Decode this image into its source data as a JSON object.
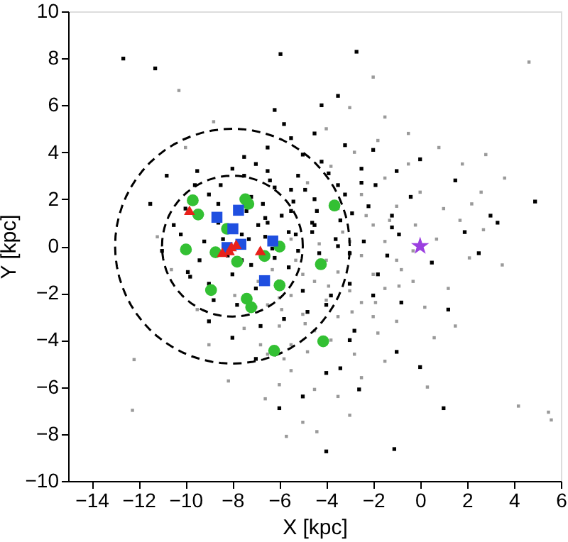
{
  "chart_data": {
    "type": "scatter",
    "xlabel": "X [kpc]",
    "ylabel": "Y [kpc]",
    "xlim": [
      -15,
      6
    ],
    "ylim": [
      -10,
      10
    ],
    "xticks": [
      -14,
      -12,
      -10,
      -8,
      -6,
      -4,
      -2,
      0,
      2,
      4,
      6
    ],
    "yticks": [
      -10,
      -8,
      -6,
      -4,
      -2,
      0,
      2,
      4,
      6,
      8,
      10
    ],
    "grid": false,
    "series": [
      {
        "type": "scatter",
        "marker": "square",
        "color": "#9a9a9a",
        "x": [
          -10.28,
          4.64,
          -12.26,
          -12.19,
          -8.17,
          4.19,
          5.47,
          5.59,
          0.31,
          -2.0,
          -1.5,
          -0.5,
          0.8,
          1.8,
          2.8,
          3.6,
          2.6,
          1.0,
          -0.2,
          2.1,
          3.5,
          1.2,
          -0.3,
          -1.0,
          -2.0,
          -1.5,
          -2.5,
          -3.5,
          -4.5,
          -5.0,
          -4.4,
          -3.0,
          -5.5,
          -6.0,
          -6.5,
          -5.5,
          -4.5,
          -3.5,
          -2.5,
          -1.5,
          -6.0,
          -5.0,
          -4.0,
          -3.0,
          -2.0,
          -1.0,
          -6.5,
          -5.5,
          -4.5,
          -3.5,
          -2.5,
          -1.5,
          -7.0,
          -6.0,
          -5.0,
          -4.0,
          -3.0,
          -2.0,
          -1.0,
          0.0,
          -5.5,
          -4.5,
          -3.5,
          -2.5,
          -1.5,
          -0.5,
          -4.8,
          -3.8,
          -2.8,
          -1.8,
          -6.3,
          -5.3,
          -4.3,
          -3.3,
          -2.3,
          -1.3,
          -0.3,
          0.7,
          1.7,
          2.7,
          -7.5,
          -6.8,
          -5.8,
          -4.8,
          -3.8,
          -2.8,
          -1.8,
          -0.8,
          0.2,
          1.5,
          -9.5,
          -10.6,
          -11.2,
          -10.0,
          -8.8,
          -3.0,
          -4.0,
          -9.0,
          -7.9,
          -6.9,
          -5.9,
          -4.9,
          -3.9,
          -2.9,
          -1.9,
          -0.9,
          0.6,
          2.2,
          -6.6,
          -5.7
        ],
        "values": [
          6.63,
          7.84,
          -6.99,
          -4.83,
          -5.74,
          -6.81,
          -7.07,
          -7.4,
          -6.0,
          7.2,
          5.5,
          4.8,
          4.2,
          3.5,
          3.9,
          2.9,
          2.3,
          1.6,
          0.9,
          -0.5,
          -0.8,
          -1.8,
          -1.5,
          -3.2,
          -3.0,
          -4.9,
          -5.6,
          -6.4,
          -6.1,
          -7.5,
          -7.9,
          -7.2,
          -5.3,
          -5.9,
          -4.6,
          -4.2,
          -3.6,
          -3.0,
          -2.4,
          -1.8,
          -3.4,
          -2.9,
          -2.3,
          -1.9,
          -1.2,
          -0.6,
          -2.5,
          -2.1,
          -1.5,
          -1.1,
          -0.4,
          0.2,
          -2.6,
          -2.2,
          -1.2,
          -0.6,
          0.2,
          0.9,
          1.7,
          2.3,
          0.3,
          0.9,
          1.6,
          2.2,
          2.9,
          3.5,
          2.7,
          3.4,
          4.0,
          4.5,
          -1.0,
          -0.6,
          0.1,
          0.6,
          1.3,
          1.1,
          -0.2,
          0.3,
          1.1,
          0.7,
          -3.5,
          -4.2,
          -4.8,
          -4.5,
          -4.0,
          -4.6,
          -3.7,
          -1.0,
          -2.6,
          -3.4,
          -2.7,
          -1.0,
          0.4,
          4.2,
          5.3,
          5.9,
          5.0,
          -4.2,
          -2.1,
          -1.5,
          -2.7,
          -3.3,
          -1.7,
          -2.8,
          -2.4,
          -1.7,
          -3.9,
          1.8,
          -6.5,
          -8.1
        ]
      },
      {
        "type": "scatter",
        "marker": "square",
        "color": "#000000",
        "x": [
          -12.65,
          -11.29,
          -5.95,
          -2.71,
          -6.2,
          -5.8,
          -4.2,
          -3.5,
          -2.0,
          -1.0,
          0.0,
          1.5,
          3.0,
          4.9,
          3.3,
          1.9,
          -0.4,
          -1.2,
          -2.5,
          -3.2,
          -4.5,
          -5.0,
          -5.5,
          -6.5,
          -7.0,
          -7.5,
          -8.0,
          -8.5,
          -9.0,
          -9.5,
          -10.0,
          -10.5,
          -11.0,
          -9.8,
          -8.8,
          -7.8,
          -6.8,
          -5.8,
          -4.8,
          -3.8,
          -2.8,
          -1.8,
          -0.8,
          0.5,
          1.2,
          2.5,
          -3.0,
          -4.0,
          -5.0,
          -6.0,
          -7.0,
          -8.0,
          -9.0,
          -6.5,
          -5.5,
          -4.5,
          -3.5,
          -2.5,
          -7.2,
          -6.2,
          -5.2,
          -4.2,
          -3.2,
          -2.2,
          -1.2,
          -8.6,
          -7.6,
          -6.6,
          -5.6,
          -4.6,
          -3.6,
          -9.2,
          -8.2,
          -7.2,
          -6.2,
          -5.2,
          -3.0,
          -10.2,
          -9.4,
          -8.4,
          -7.4,
          -6.4,
          -5.4,
          -4.4,
          -3.4,
          -2.4,
          -1.4,
          -9.0,
          -8.0,
          -7.0,
          -6.0,
          -5.0,
          -4.0,
          -3.0,
          -2.0,
          -7.5,
          -6.5,
          -5.5,
          -4.5,
          -3.5,
          -9.6,
          -8.6,
          -7.6,
          -6.6,
          -5.6,
          -4.6,
          -1.0,
          -4.0,
          1.0,
          0.0,
          -1.1,
          -2.6,
          -3.4,
          -10.8,
          -11.5,
          -9.9,
          -6.9,
          -5.9,
          -4.9,
          -3.9,
          -2.9,
          -1.9,
          -0.9,
          -6.3,
          -7.3,
          -5.3,
          -4.3,
          -6.7
        ],
        "values": [
          7.99,
          7.57,
          8.18,
          8.28,
          5.8,
          5.2,
          6.0,
          6.4,
          4.1,
          3.2,
          3.7,
          2.8,
          1.3,
          1.9,
          1.0,
          0.6,
          2.1,
          1.3,
          2.7,
          4.3,
          4.8,
          3.9,
          4.6,
          4.2,
          3.5,
          3.0,
          3.3,
          2.6,
          2.2,
          3.2,
          1.6,
          0.9,
          -0.2,
          -1.3,
          -2.3,
          -2.5,
          -3.4,
          -3.1,
          -2.8,
          -2.1,
          -3.6,
          -1.2,
          -2.4,
          -0.7,
          -2.7,
          -0.3,
          -4.0,
          -5.4,
          -6.4,
          -6.9,
          -4.8,
          -3.9,
          -3.2,
          1.0,
          1.5,
          2.0,
          2.6,
          3.3,
          2.1,
          2.5,
          3.0,
          3.6,
          2.2,
          1.7,
          0.8,
          1.0,
          0.5,
          1.2,
          0.6,
          1.0,
          0.3,
          0.2,
          -0.4,
          -0.8,
          -0.5,
          -0.2,
          -1.6,
          0.5,
          -0.6,
          0.3,
          1.5,
          2.8,
          1.9,
          1.5,
          1.1,
          0.2,
          -0.4,
          -1.6,
          -1.2,
          -1.8,
          -1.5,
          -1.9,
          -2.5,
          -0.3,
          -2.1,
          3.8,
          3.2,
          2.4,
          0.9,
          0.0,
          2.6,
          1.8,
          -0.6,
          0.4,
          -0.9,
          0.6,
          -4.5,
          -8.74,
          -6.9,
          -5.15,
          -8.64,
          -6.1,
          -5.2,
          3.0,
          1.8,
          -1.1,
          0.9,
          1.3,
          2.4,
          3.1,
          1.4,
          2.6,
          0.5,
          -0.1,
          0.3,
          0.5,
          -0.3,
          1.8
        ]
      },
      {
        "type": "scatter",
        "marker": "circle",
        "color": "#33c033",
        "x": [
          -9.69,
          -9.46,
          -7.45,
          -7.32,
          -8.23,
          -9.98,
          -8.72,
          -7.8,
          -6.63,
          -5.99,
          -3.65,
          -4.23,
          -8.91,
          -7.39,
          -7.2,
          -5.99,
          -4.13,
          -6.22
        ],
        "values": [
          1.95,
          1.35,
          2.0,
          1.8,
          0.74,
          -0.14,
          -0.26,
          -0.66,
          -0.42,
          -0.02,
          1.73,
          -0.77,
          -1.87,
          -2.24,
          -2.6,
          -1.67,
          -4.05,
          -4.45
        ]
      },
      {
        "type": "scatter",
        "marker": "square",
        "color": "#1f4fe0",
        "x": [
          -8.66,
          -7.74,
          -7.98,
          -8.23,
          -7.64,
          -6.28,
          -6.63
        ],
        "values": [
          1.23,
          1.53,
          0.74,
          -0.06,
          0.08,
          0.22,
          -1.47
        ]
      },
      {
        "type": "scatter",
        "marker": "triangle",
        "color": "#e8201a",
        "x": [
          -9.83,
          -8.43,
          -8.04,
          -7.84,
          -8.13,
          -6.81
        ],
        "values": [
          1.53,
          -0.26,
          -0.02,
          0.08,
          -0.18,
          -0.18
        ]
      },
      {
        "type": "scatter",
        "marker": "star",
        "color": "#9b3fe0",
        "x": [
          0
        ],
        "values": [
          0
        ]
      }
    ]
  }
}
